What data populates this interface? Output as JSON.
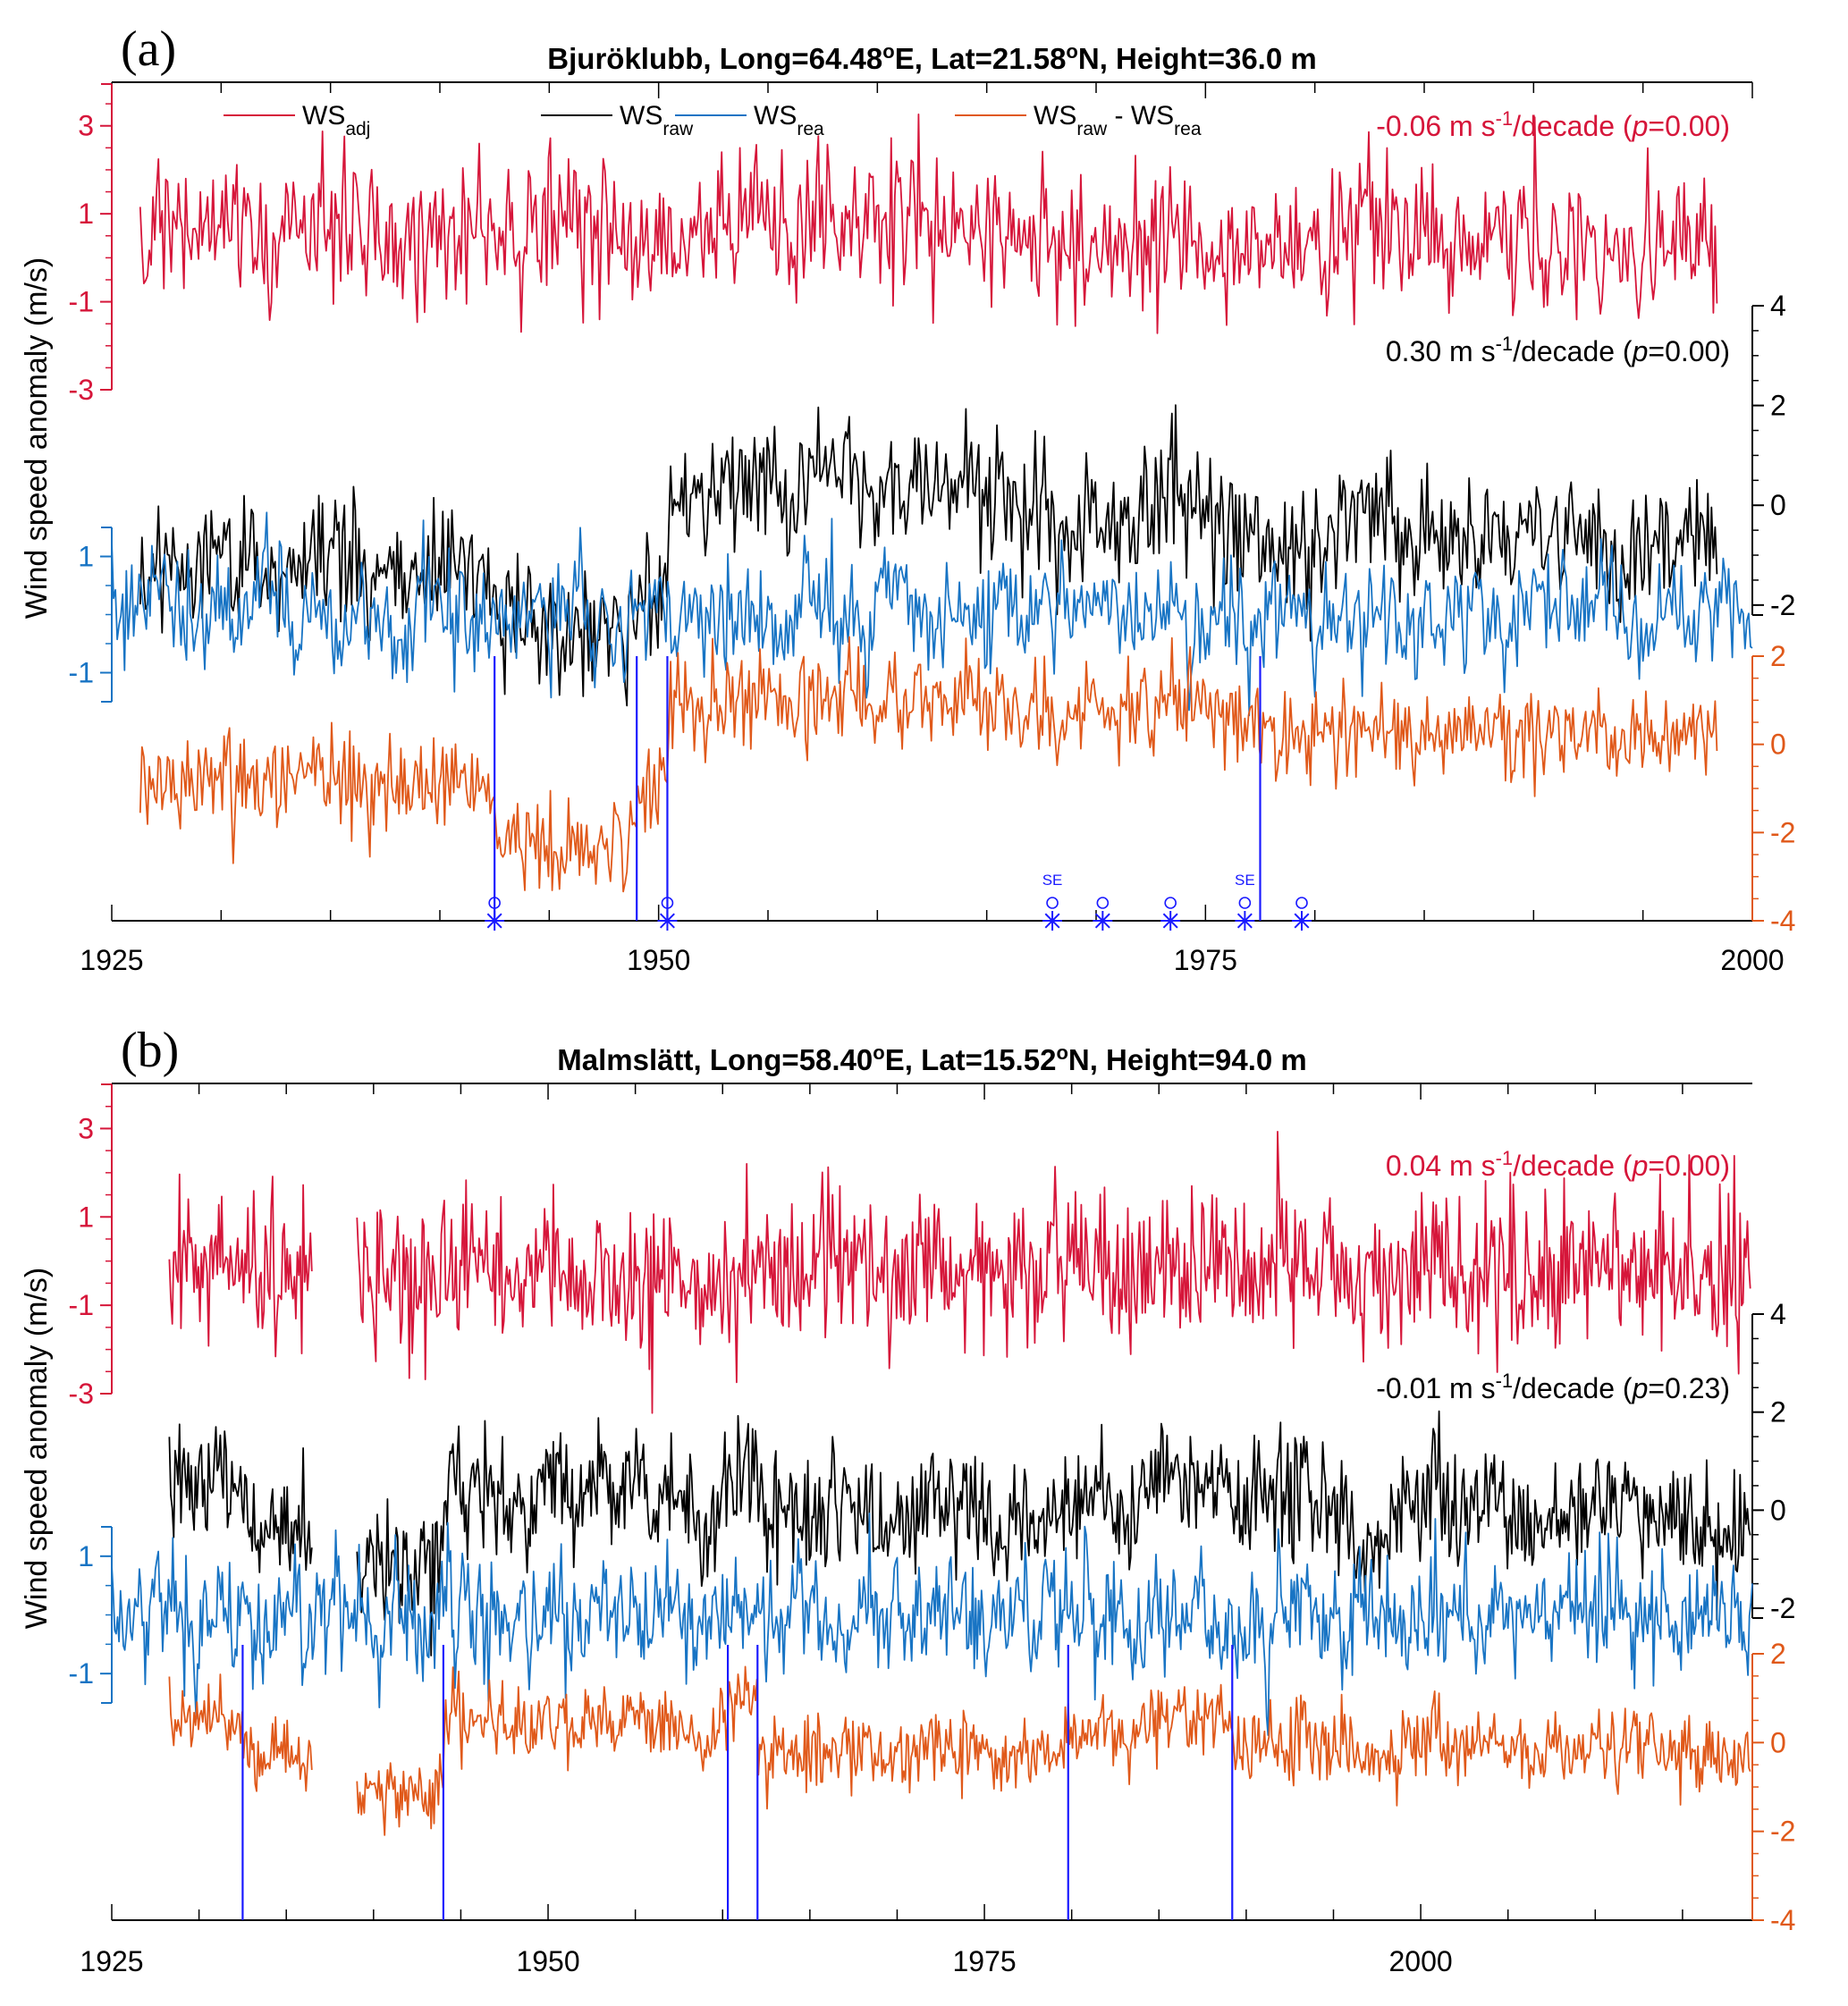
{
  "ylabel": "Wind speed anomaly (m/s)",
  "colors": {
    "adj": "#d6163a",
    "raw": "#000000",
    "rea": "#1874c4",
    "diff": "#e0591a",
    "breaks": "#1a1aff"
  },
  "legend": [
    {
      "key": "adj",
      "base": "WS",
      "sub": "adj",
      "base2": "",
      "sub2": ""
    },
    {
      "key": "raw",
      "base": "WS",
      "sub": "raw",
      "base2": "",
      "sub2": ""
    },
    {
      "key": "rea",
      "base": "WS",
      "sub": "rea",
      "base2": "",
      "sub2": ""
    },
    {
      "key": "diff",
      "base": "WS",
      "sub": "raw",
      "base2": " - WS",
      "sub2": "rea"
    }
  ],
  "chart_data": [
    {
      "panel_label": "(a)",
      "type": "line",
      "title_prefix": "Bjuröklubb, Long=64.48",
      "title_sup1": "o",
      "title_mid": "E, Lat=21.58",
      "title_sup2": "o",
      "title_suffix": "N, Height=36.0 m",
      "x_range": [
        1925,
        2000
      ],
      "xticks": [
        1925,
        1950,
        1975,
        2000
      ],
      "xtick_labels": [
        "1925",
        "1950",
        "1975",
        "2000"
      ],
      "data_start": 1926.3,
      "data_end": 1998.5,
      "gaps": [],
      "axes": {
        "adj": {
          "ticks": [
            3,
            1,
            -1,
            -3
          ],
          "labels": [
            "3",
            "1",
            "-1",
            "-3"
          ]
        },
        "raw": {
          "ticks": [
            4,
            2,
            0,
            -2
          ],
          "labels": [
            "4",
            "2",
            "0",
            "-2"
          ]
        },
        "rea": {
          "ticks": [
            1,
            -1
          ],
          "labels": [
            "1",
            "-1"
          ]
        },
        "diff": {
          "ticks": [
            2,
            0,
            -2,
            -4
          ],
          "labels": [
            "2",
            "0",
            "-2",
            "-4"
          ]
        }
      },
      "trends": {
        "adj": {
          "pre": "-0.06 m s",
          "sup": "-1",
          "mid": "/decade (",
          "p": "p",
          "post": "=0.00)"
        },
        "raw": {
          "pre": "0.30 m s",
          "sup": "-1",
          "mid": "/decade (",
          "p": "p",
          "post": "=0.00)"
        }
      },
      "breakpoints": [
        1942.5,
        1949.0,
        1950.4,
        1977.5
      ],
      "diff_segments": [
        {
          "start": 1926.3,
          "end": 1942.5,
          "level": -0.9
        },
        {
          "start": 1942.5,
          "end": 1949.0,
          "level": -2.2
        },
        {
          "start": 1949.0,
          "end": 1950.4,
          "level": -1.0
        },
        {
          "start": 1950.4,
          "end": 1977.5,
          "level": 0.9
        },
        {
          "start": 1977.5,
          "end": 1998.5,
          "level": 0.35
        }
      ],
      "metadata_events": [
        {
          "year": 1942.5,
          "label": ""
        },
        {
          "year": 1950.4,
          "label": ""
        },
        {
          "year": 1968.0,
          "label": "SE"
        },
        {
          "year": 1970.3,
          "label": ""
        },
        {
          "year": 1973.4,
          "label": ""
        },
        {
          "year": 1976.8,
          "label": "SE"
        },
        {
          "year": 1979.4,
          "label": ""
        }
      ]
    },
    {
      "panel_label": "(b)",
      "type": "line",
      "title_prefix": "Malmslätt, Long=58.40",
      "title_sup1": "o",
      "title_mid": "E, Lat=15.52",
      "title_sup2": "o",
      "title_suffix": "N, Height=94.0 m",
      "x_range": [
        1925,
        2019
      ],
      "xticks": [
        1925,
        1950,
        1975,
        2000
      ],
      "xtick_labels": [
        "1925",
        "1950",
        "1975",
        "2000"
      ],
      "data_start": 1928.3,
      "data_end": 2019.0,
      "gaps": [
        [
          1936.5,
          1939.0
        ]
      ],
      "axes": {
        "adj": {
          "ticks": [
            3,
            1,
            -1,
            -3
          ],
          "labels": [
            "3",
            "1",
            "-1",
            "-3"
          ]
        },
        "raw": {
          "ticks": [
            4,
            2,
            0,
            -2
          ],
          "labels": [
            "4",
            "2",
            "0",
            "-2"
          ]
        },
        "rea": {
          "ticks": [
            1,
            -1
          ],
          "labels": [
            "1",
            "-1"
          ]
        },
        "diff": {
          "ticks": [
            2,
            0,
            -2,
            -4
          ],
          "labels": [
            "2",
            "0",
            "-2",
            "-4"
          ]
        }
      },
      "trends": {
        "adj": {
          "pre": "0.04 m s",
          "sup": "-1",
          "mid": "/decade (",
          "p": "p",
          "post": "=0.00)"
        },
        "raw": {
          "pre": "-0.01 m s",
          "sup": "-1",
          "mid": "/decade (",
          "p": "p",
          "post": "=0.23)"
        }
      },
      "breakpoints": [
        1932.5,
        1944.0,
        1960.3,
        1962.0,
        1979.8,
        1989.2
      ],
      "diff_segments": [
        {
          "start": 1928.3,
          "end": 1932.5,
          "level": 0.4
        },
        {
          "start": 1932.5,
          "end": 1936.5,
          "level": -0.2
        },
        {
          "start": 1939.0,
          "end": 1944.0,
          "level": -1.0
        },
        {
          "start": 1944.0,
          "end": 1960.3,
          "level": 0.5
        },
        {
          "start": 1960.3,
          "end": 1962.0,
          "level": 0.9
        },
        {
          "start": 1962.0,
          "end": 1979.8,
          "level": -0.2
        },
        {
          "start": 1979.8,
          "end": 1989.2,
          "level": 0.5
        },
        {
          "start": 1989.2,
          "end": 2019.0,
          "level": -0.1
        }
      ],
      "metadata_events": []
    }
  ]
}
